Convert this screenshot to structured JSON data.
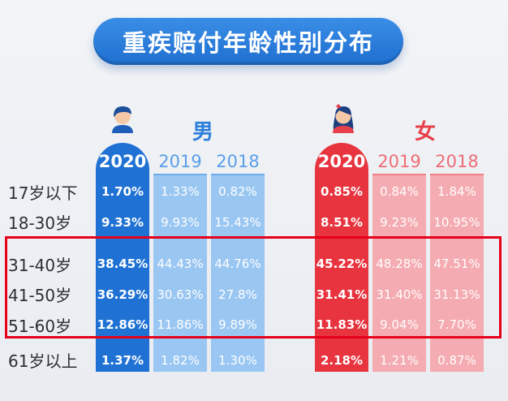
{
  "title": "重疾赔付年龄性别分布",
  "chart_data": {
    "type": "table",
    "title": "重疾赔付年龄性别分布",
    "age_groups": [
      "17岁以下",
      "18-30岁",
      "31-40岁",
      "41-50岁",
      "51-60岁",
      "61岁以上"
    ],
    "highlighted_rows": [
      "31-40岁",
      "41-50岁",
      "51-60岁"
    ],
    "groups": [
      {
        "gender": "男",
        "color": "#2d7fdc",
        "series": [
          {
            "year": "2020",
            "values": [
              "1.70%",
              "9.33%",
              "38.45%",
              "36.29%",
              "12.86%",
              "1.37%"
            ]
          },
          {
            "year": "2019",
            "values": [
              "1.33%",
              "9.93%",
              "44.43%",
              "30.63%",
              "11.86%",
              "1.82%"
            ]
          },
          {
            "year": "2018",
            "values": [
              "0.82%",
              "15.43%",
              "44.76%",
              "27.8%",
              "9.89%",
              "1.30%"
            ]
          }
        ]
      },
      {
        "gender": "女",
        "color": "#e8404a",
        "series": [
          {
            "year": "2020",
            "values": [
              "0.85%",
              "8.51%",
              "45.22%",
              "31.41%",
              "11.83%",
              "2.18%"
            ]
          },
          {
            "year": "2019",
            "values": [
              "0.84%",
              "9.23%",
              "48.28%",
              "31.40%",
              "9.04%",
              "1.21%"
            ]
          },
          {
            "year": "2018",
            "values": [
              "1.84%",
              "10.95%",
              "47.51%",
              "31.13%",
              "7.70%",
              "0.87%"
            ]
          }
        ]
      }
    ]
  },
  "icons": {
    "male": "male-avatar-icon",
    "female": "female-avatar-icon"
  },
  "colors": {
    "male_primary": "#2d7fdc",
    "male_light": "#8fc1f2",
    "female_primary": "#e8404a",
    "female_light": "#f7a3a8",
    "highlight": "#e6001a"
  }
}
